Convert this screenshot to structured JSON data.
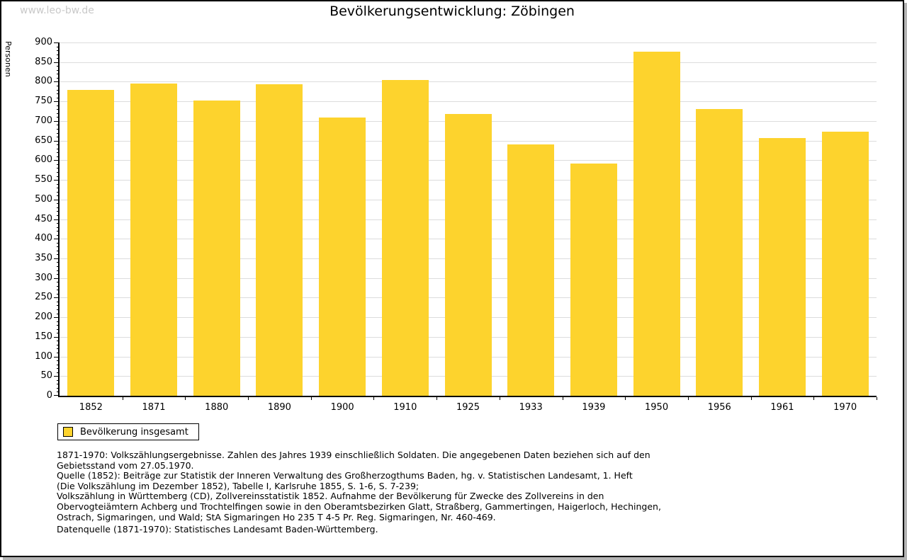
{
  "watermark": "www.leo-bw.de",
  "chart_data": {
    "type": "bar",
    "title": "Bevölkerungsentwicklung: Zöbingen",
    "ylabel": "Personen",
    "xlabel": "",
    "categories": [
      "1852",
      "1871",
      "1880",
      "1890",
      "1900",
      "1910",
      "1925",
      "1933",
      "1939",
      "1950",
      "1956",
      "1961",
      "1970"
    ],
    "values": [
      780,
      795,
      752,
      793,
      708,
      805,
      717,
      640,
      591,
      877,
      731,
      657,
      673
    ],
    "ylim": [
      0,
      900
    ],
    "ytick_step": 50,
    "minor_tick_step": 10,
    "grid": "horizontal-major",
    "legend_position": "bottom-left",
    "bar_color": "#fdd32d",
    "grid_color": "#dcdcdc",
    "legend": {
      "label": "Bevölkerung insgesamt"
    }
  },
  "footnotes": {
    "lines": [
      "1871-1970: Volkszählungsergebnisse. Zahlen des Jahres 1939 einschließlich Soldaten. Die angegebenen Daten beziehen sich auf den",
      "Gebietsstand vom 27.05.1970.",
      "Quelle (1852): Beiträge zur Statistik der Inneren Verwaltung des Großherzogthums Baden, hg. v. Statistischen Landesamt, 1. Heft",
      "(Die Volkszählung im Dezember 1852), Tabelle I, Karlsruhe 1855, S. 1-6, S. 7-239;",
      "Volkszählung in Württemberg (CD), Zollvereinsstatistik 1852. Aufnahme der Bevölkerung für Zwecke des Zollvereins in den",
      "Obervogteiämtern Achberg und Trochtelfingen sowie in den Oberamtsbezirken Glatt, Straßberg, Gammertingen, Haigerloch, Hechingen,",
      "Ostrach, Sigmaringen, und Wald; StA Sigmaringen Ho 235 T 4-5 Pr. Reg. Sigmaringen, Nr. 460-469."
    ],
    "datasource": "Datenquelle (1871-1970): Statistisches Landesamt Baden-Württemberg."
  }
}
